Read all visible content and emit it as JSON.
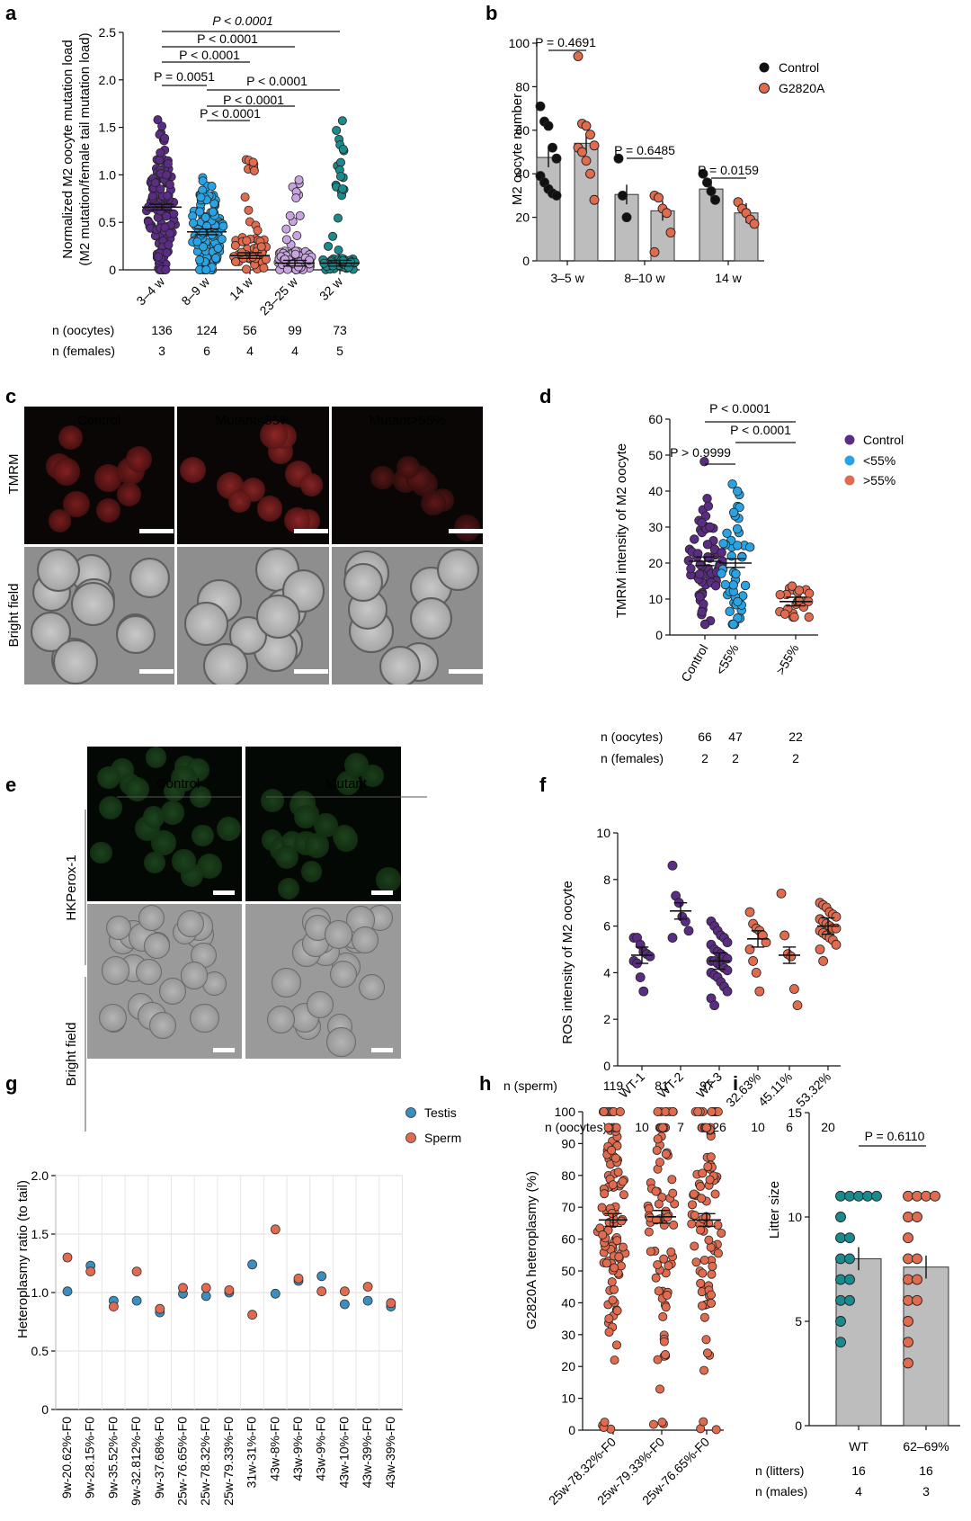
{
  "colors": {
    "purple": "#5b2c83",
    "blue": "#29a3e3",
    "orange": "#e06b4f",
    "lilac": "#c9a4e0",
    "teal": "#1c8a8c",
    "black": "#111111",
    "bar_grey": "#bdbdbd",
    "testis": "#3a8fbf",
    "sperm": "#e06b4f",
    "green_cell": "#1d4a1d",
    "red_cell": "#a0282a"
  },
  "panels": {
    "a": {
      "letter": "a",
      "ylabel_line1": "Normalized M2 oocyte mutation load",
      "ylabel_line2": "(M2 mutation/female tail mutation load)",
      "pvals": [
        "P < 0.0001",
        "P < 0.0001",
        "P < 0.0001",
        "P = 0.0051",
        "P < 0.0001",
        "P < 0.0001",
        "P < 0.0001"
      ],
      "n_oocytes_label": "n (oocytes)",
      "n_females_label": "n (females)",
      "n_oocytes": [
        "136",
        "124",
        "56",
        "99",
        "73"
      ],
      "n_females": [
        "3",
        "6",
        "4",
        "4",
        "5"
      ]
    },
    "b": {
      "letter": "b",
      "ylabel": "M2 oocyte number",
      "pvals": [
        "P = 0.4691",
        "P = 0.6485",
        "P = 0.0159"
      ],
      "legend": [
        "Control",
        "G2820A"
      ]
    },
    "c": {
      "letter": "c",
      "columns": [
        "Control",
        "Mutant<55%",
        "Mutant>55%"
      ],
      "rows": [
        "TMRM",
        "Bright field"
      ]
    },
    "d": {
      "letter": "d",
      "ylabel": "TMRM intensity of M2 oocyte",
      "pvals": [
        "P < 0.0001",
        "P < 0.0001",
        "P > 0.9999"
      ],
      "legend": [
        "Control",
        "<55%",
        ">55%"
      ],
      "n_oocytes_label": "n (oocytes)",
      "n_females_label": "n (females)",
      "n_oocytes": [
        "66",
        "47",
        "22"
      ],
      "n_females": [
        "2",
        "2",
        "2"
      ]
    },
    "e": {
      "letter": "e",
      "columns": [
        "Control",
        "Mutant"
      ],
      "rows": [
        "HKPerox-1",
        "Bright field"
      ]
    },
    "f": {
      "letter": "f",
      "ylabel": "ROS intensity of M2 oocyte",
      "n_oocytes_label": "n (oocytes)",
      "n_oocytes": [
        "10",
        "7",
        "26",
        "10",
        "6",
        "20"
      ]
    },
    "g": {
      "letter": "g",
      "ylabel": "Heteroplasmy ratio (to tail)",
      "legend": [
        "Testis",
        "Sperm"
      ]
    },
    "h": {
      "letter": "h",
      "ylabel": "G2820A heteroplasmy (%)",
      "n_sperm_label": "n (sperm)",
      "n_sperm": [
        "119",
        "81",
        "97"
      ]
    },
    "i": {
      "letter": "i",
      "ylabel": "Litter size",
      "pval": "P = 0.6110",
      "n_litters_label": "n (litters)",
      "n_males_label": "n (males)",
      "n_litters": [
        "16",
        "16"
      ],
      "n_males": [
        "4",
        "3"
      ]
    }
  },
  "chart_data": [
    {
      "panel": "a",
      "type": "scatter",
      "categories": [
        "3–4 w",
        "8–9 w",
        "14 w",
        "23–25 w",
        "32 w"
      ],
      "means": [
        0.66,
        0.4,
        0.15,
        0.07,
        0.07
      ],
      "ylim": [
        0,
        2.5
      ],
      "yticks": [
        0,
        0.5,
        1.0,
        1.5,
        2.0,
        2.5
      ],
      "ylabel": "Normalized M2 oocyte mutation load (M2 mutation/female tail mutation load)"
    },
    {
      "panel": "b",
      "type": "bar",
      "categories": [
        "3–5 w",
        "8–10 w",
        "14 w"
      ],
      "series": [
        {
          "name": "Control",
          "values": [
            47.5,
            30.5,
            33
          ],
          "points": [
            [
              71,
              64,
              62,
              52,
              47,
              39,
              36,
              33,
              31,
              30
            ],
            [
              47,
              30,
              20
            ],
            [
              40,
              36,
              32,
              28
            ]
          ]
        },
        {
          "name": "G2820A",
          "values": [
            54,
            23,
            22
          ],
          "points": [
            [
              94,
              63,
              62,
              58,
              53,
              52,
              50,
              46,
              40,
              28
            ],
            [
              30,
              29,
              24,
              22,
              13,
              4
            ],
            [
              27,
              24,
              22,
              19,
              17
            ]
          ]
        }
      ],
      "ylim": [
        0,
        100
      ],
      "yticks": [
        0,
        20,
        40,
        60,
        80,
        100
      ],
      "ylabel": "M2 oocyte number"
    },
    {
      "panel": "d",
      "type": "scatter",
      "categories": [
        "Control",
        "<55%",
        ">55%"
      ],
      "means": [
        20.5,
        20,
        9.3
      ],
      "ylim": [
        0,
        60
      ],
      "yticks": [
        0,
        10,
        20,
        30,
        40,
        50,
        60
      ],
      "ylabel": "TMRM intensity of M2 oocyte"
    },
    {
      "panel": "f",
      "type": "scatter",
      "categories": [
        "WT-1",
        "WT-2",
        "WT-3",
        "32.63%",
        "45.11%",
        "53.32%"
      ],
      "means": [
        4.75,
        6.65,
        4.5,
        5.45,
        4.75,
        6.0
      ],
      "points": [
        [
          5.5,
          5.5,
          5.2,
          4.9,
          4.8,
          4.7,
          4.5,
          4.4,
          3.8,
          3.2
        ],
        [
          8.6,
          7.3,
          7.0,
          6.4,
          6.2,
          5.8,
          5.5
        ],
        [
          6.2,
          6.0,
          5.8,
          5.6,
          5.5,
          5.3,
          5.2,
          5.0,
          4.9,
          4.8,
          4.7,
          4.6,
          4.5,
          4.5,
          4.4,
          4.3,
          4.2,
          4.1,
          4.0,
          3.9,
          3.8,
          3.6,
          3.4,
          3.2,
          2.9,
          2.6
        ],
        [
          6.6,
          6.1,
          5.9,
          5.8,
          5.6,
          5.3,
          5.0,
          4.5,
          4.0,
          3.2
        ],
        [
          7.4,
          5.6,
          4.8,
          4.7,
          3.3,
          2.6
        ],
        [
          7.0,
          6.9,
          6.8,
          6.6,
          6.5,
          6.4,
          6.3,
          6.2,
          6.1,
          6.0,
          5.9,
          5.9,
          5.8,
          5.7,
          5.6,
          5.5,
          5.4,
          5.2,
          5.0,
          4.5
        ]
      ],
      "ylim": [
        0,
        10
      ],
      "yticks": [
        0,
        2,
        4,
        6,
        8,
        10
      ],
      "ylabel": "ROS intensity of M2 oocyte"
    },
    {
      "panel": "g",
      "type": "scatter",
      "categories": [
        "9w-20.62%-F0",
        "9w-28.15%-F0",
        "9w-35.52%-F0",
        "9w-32.812%-F0",
        "9w-37.68%-F0",
        "25w-76.65%-F0",
        "25w-78.32%-F0",
        "25w-79.33%-F0",
        "31w-31%-F0",
        "43w-8%-F0",
        "43w-9%-F0",
        "43w-9%-F0",
        "43w-10%-F0",
        "43w-39%-F0",
        "43w-39%-F0"
      ],
      "series": [
        {
          "name": "Testis",
          "values": [
            1.01,
            1.23,
            0.93,
            0.93,
            0.83,
            0.99,
            0.97,
            1.0,
            1.24,
            0.99,
            1.1,
            1.14,
            0.9,
            0.93,
            0.88
          ]
        },
        {
          "name": "Sperm",
          "values": [
            1.3,
            1.18,
            0.88,
            1.18,
            0.86,
            1.04,
            1.04,
            1.02,
            0.81,
            1.54,
            1.12,
            1.01,
            1.01,
            1.05,
            0.91
          ]
        }
      ],
      "ylim": [
        0,
        2.0
      ],
      "yticks": [
        0,
        0.5,
        1.0,
        1.5,
        2.0
      ],
      "ylabel": "Heteroplasmy ratio (to tail)"
    },
    {
      "panel": "h",
      "type": "scatter",
      "categories": [
        "25w-78.32%-F0",
        "25w-79.33%-F0",
        "25w-76.65%-F0"
      ],
      "means": [
        66,
        67,
        66
      ],
      "ylim": [
        0,
        100
      ],
      "yticks": [
        0,
        10,
        20,
        30,
        40,
        50,
        60,
        70,
        80,
        90,
        100
      ],
      "ylabel": "G2820A heteroplasmy (%)"
    },
    {
      "panel": "i",
      "type": "bar",
      "categories": [
        "WT",
        "62–69%"
      ],
      "values": [
        8.0,
        7.6
      ],
      "points": [
        [
          11,
          11,
          11,
          11,
          11,
          10,
          9,
          9,
          8,
          8,
          7,
          7,
          6,
          6,
          5,
          4
        ],
        [
          11,
          11,
          11,
          11,
          10,
          10,
          9,
          8,
          8,
          7,
          7,
          6,
          6,
          5,
          4,
          3
        ]
      ],
      "ylim": [
        0,
        15
      ],
      "yticks": [
        0,
        5,
        10,
        15
      ],
      "ylabel": "Litter size"
    }
  ]
}
